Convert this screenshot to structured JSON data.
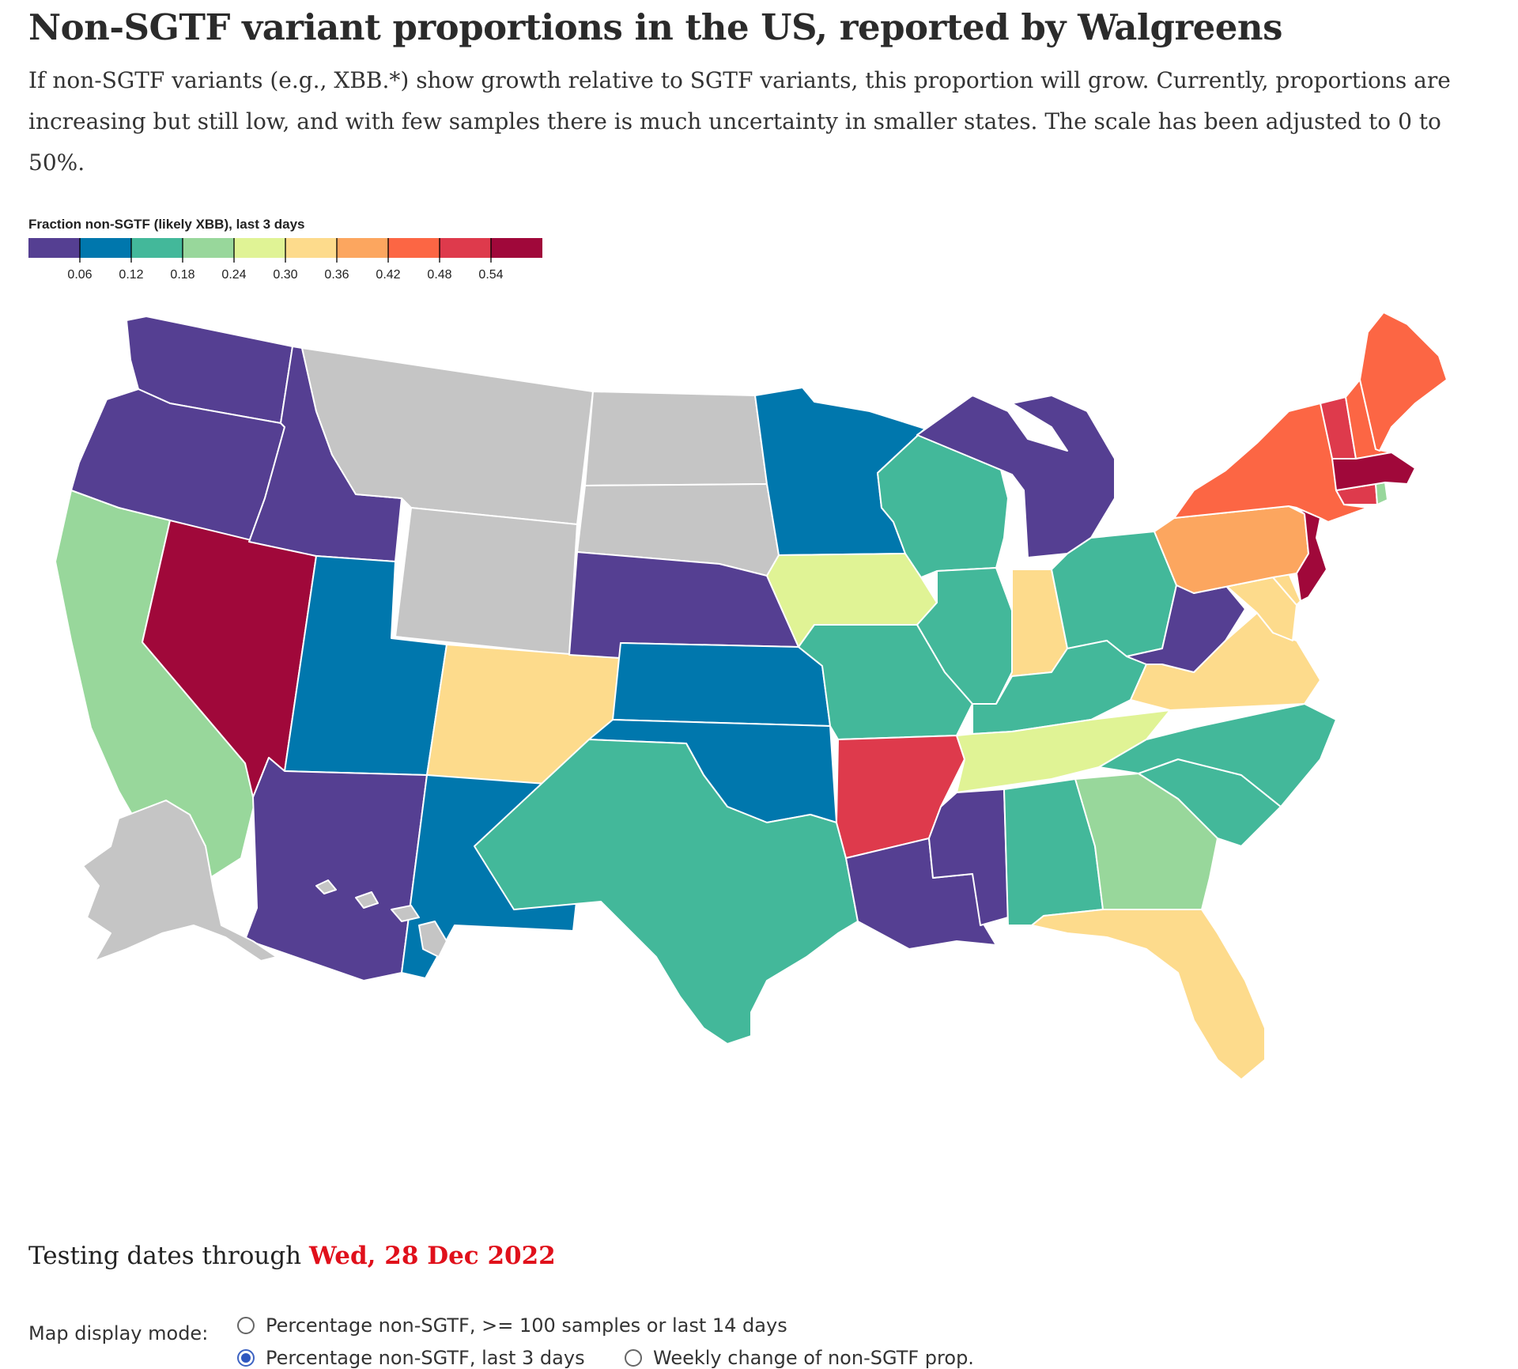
{
  "header": {
    "title": "Non-SGTF variant proportions in the US, reported by Walgreens",
    "subtitle": "If non-SGTF variants (e.g., XBB.*) show growth relative to SGTF variants, this proportion will grow. Currently, proportions are increasing but still low, and with few samples there is much uncertainty in smaller states. The scale has been adjusted to 0 to 50%."
  },
  "legend": {
    "title": "Fraction non-SGTF (likely XBB), last 3 days",
    "colors": [
      "#553f92",
      "#0077ad",
      "#43b89a",
      "#98d79b",
      "#e0f395",
      "#fddb8c",
      "#fca65f",
      "#fc6644",
      "#de3a4c",
      "#a0083a"
    ],
    "ticks": [
      "0.06",
      "0.12",
      "0.18",
      "0.24",
      "0.30",
      "0.36",
      "0.42",
      "0.48",
      "0.54"
    ],
    "no_data_color": "#c5c5c5"
  },
  "map_data": {
    "states": [
      {
        "abbr": "WA",
        "name": "Washington",
        "bin": 0
      },
      {
        "abbr": "OR",
        "name": "Oregon",
        "bin": 0
      },
      {
        "abbr": "CA",
        "name": "California",
        "bin": 3
      },
      {
        "abbr": "NV",
        "name": "Nevada",
        "bin": 9
      },
      {
        "abbr": "ID",
        "name": "Idaho",
        "bin": 0
      },
      {
        "abbr": "MT",
        "name": "Montana",
        "bin": null
      },
      {
        "abbr": "WY",
        "name": "Wyoming",
        "bin": null
      },
      {
        "abbr": "UT",
        "name": "Utah",
        "bin": 1
      },
      {
        "abbr": "AZ",
        "name": "Arizona",
        "bin": 0
      },
      {
        "abbr": "CO",
        "name": "Colorado",
        "bin": 5
      },
      {
        "abbr": "NM",
        "name": "New Mexico",
        "bin": 1
      },
      {
        "abbr": "ND",
        "name": "North Dakota",
        "bin": null
      },
      {
        "abbr": "SD",
        "name": "South Dakota",
        "bin": null
      },
      {
        "abbr": "NE",
        "name": "Nebraska",
        "bin": 0
      },
      {
        "abbr": "KS",
        "name": "Kansas",
        "bin": 1
      },
      {
        "abbr": "OK",
        "name": "Oklahoma",
        "bin": 1
      },
      {
        "abbr": "TX",
        "name": "Texas",
        "bin": 2
      },
      {
        "abbr": "MN",
        "name": "Minnesota",
        "bin": 1
      },
      {
        "abbr": "IA",
        "name": "Iowa",
        "bin": 4
      },
      {
        "abbr": "MO",
        "name": "Missouri",
        "bin": 2
      },
      {
        "abbr": "AR",
        "name": "Arkansas",
        "bin": 8
      },
      {
        "abbr": "LA",
        "name": "Louisiana",
        "bin": 0
      },
      {
        "abbr": "WI",
        "name": "Wisconsin",
        "bin": 2
      },
      {
        "abbr": "IL",
        "name": "Illinois",
        "bin": 2
      },
      {
        "abbr": "MI",
        "name": "Michigan",
        "bin": 0
      },
      {
        "abbr": "IN",
        "name": "Indiana",
        "bin": 5
      },
      {
        "abbr": "OH",
        "name": "Ohio",
        "bin": 2
      },
      {
        "abbr": "KY",
        "name": "Kentucky",
        "bin": 2
      },
      {
        "abbr": "TN",
        "name": "Tennessee",
        "bin": 4
      },
      {
        "abbr": "MS",
        "name": "Mississippi",
        "bin": 0
      },
      {
        "abbr": "AL",
        "name": "Alabama",
        "bin": 2
      },
      {
        "abbr": "GA",
        "name": "Georgia",
        "bin": 3
      },
      {
        "abbr": "FL",
        "name": "Florida",
        "bin": 5
      },
      {
        "abbr": "SC",
        "name": "South Carolina",
        "bin": 2
      },
      {
        "abbr": "NC",
        "name": "North Carolina",
        "bin": 2
      },
      {
        "abbr": "VA",
        "name": "Virginia",
        "bin": 5
      },
      {
        "abbr": "WV",
        "name": "West Virginia",
        "bin": 0
      },
      {
        "abbr": "MD",
        "name": "Maryland",
        "bin": 5
      },
      {
        "abbr": "DE",
        "name": "Delaware",
        "bin": 5
      },
      {
        "abbr": "PA",
        "name": "Pennsylvania",
        "bin": 6
      },
      {
        "abbr": "NJ",
        "name": "New Jersey",
        "bin": 9
      },
      {
        "abbr": "NY",
        "name": "New York",
        "bin": 7
      },
      {
        "abbr": "CT",
        "name": "Connecticut",
        "bin": 8
      },
      {
        "abbr": "RI",
        "name": "Rhode Island",
        "bin": 3
      },
      {
        "abbr": "MA",
        "name": "Massachusetts",
        "bin": 9
      },
      {
        "abbr": "VT",
        "name": "Vermont",
        "bin": 8
      },
      {
        "abbr": "NH",
        "name": "New Hampshire",
        "bin": 7
      },
      {
        "abbr": "ME",
        "name": "Maine",
        "bin": 7
      },
      {
        "abbr": "AK",
        "name": "Alaska",
        "bin": null
      },
      {
        "abbr": "HI",
        "name": "Hawaii",
        "bin": null
      }
    ]
  },
  "footer": {
    "dates_prefix": "Testing dates through",
    "dates_value": "Wed, 28 Dec 2022",
    "mode_label": "Map display mode:",
    "options": [
      {
        "label": "Percentage non-SGTF, >= 100 samples or last 14 days",
        "selected": false
      },
      {
        "label": "Percentage non-SGTF, last 3 days",
        "selected": true
      },
      {
        "label": "Weekly change of non-SGTF prop.",
        "selected": false
      }
    ]
  }
}
